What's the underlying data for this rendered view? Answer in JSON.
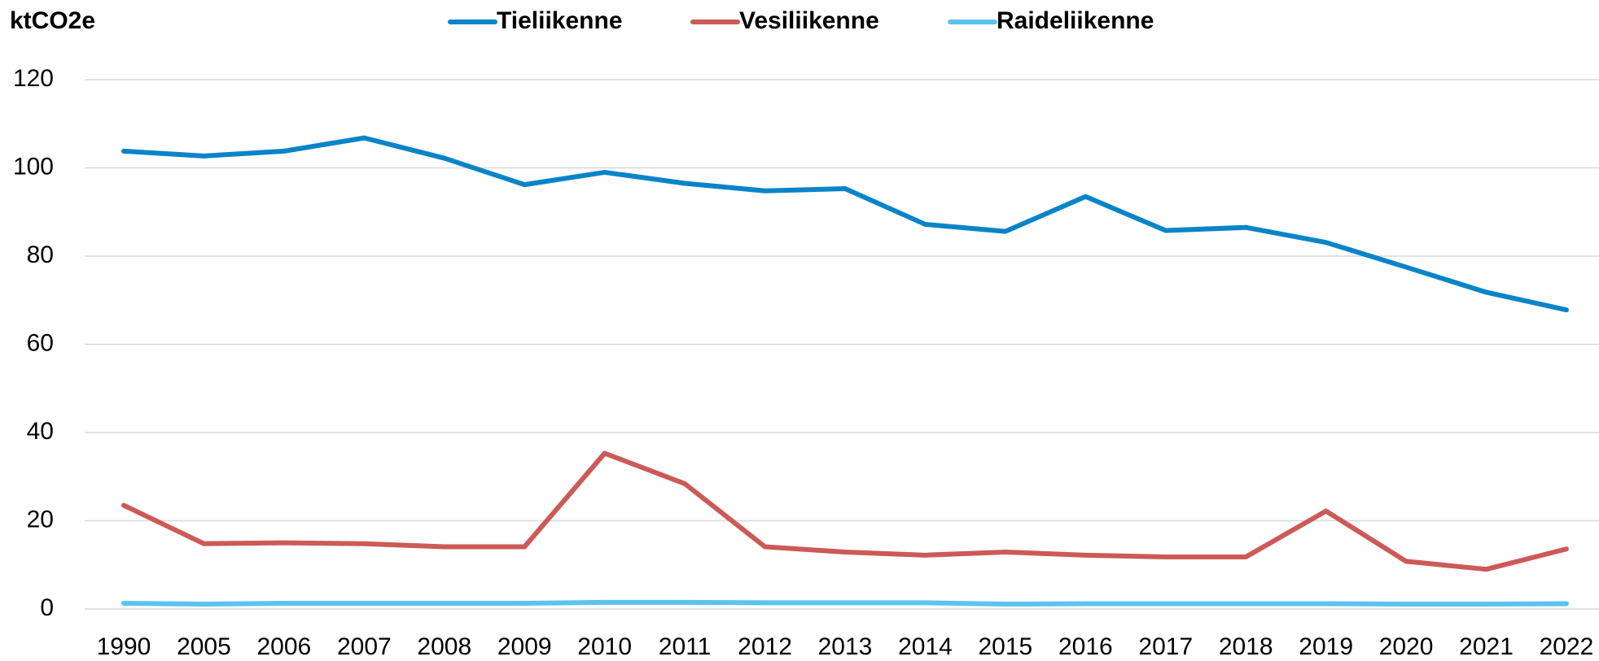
{
  "chart_data": {
    "type": "line",
    "y_label": "ktCO2e",
    "categories": [
      "1990",
      "2005",
      "2006",
      "2007",
      "2008",
      "2009",
      "2010",
      "2011",
      "2012",
      "2013",
      "2014",
      "2015",
      "2016",
      "2017",
      "2018",
      "2019",
      "2020",
      "2021",
      "2022"
    ],
    "series": [
      {
        "name": "Tieliikenne",
        "color": "#0a84c8",
        "values": [
          103.8,
          102.7,
          103.8,
          106.8,
          102.2,
          96.2,
          99,
          96.5,
          94.8,
          95.3,
          87.2,
          85.6,
          93.5,
          85.8,
          86.5,
          83.1,
          77.5,
          71.8,
          67.8
        ]
      },
      {
        "name": "Vesiliikenne",
        "color": "#cc5a57",
        "values": [
          23.5,
          14.8,
          15,
          14.8,
          14.1,
          14.1,
          35.3,
          28.4,
          14.1,
          12.9,
          12.2,
          12.9,
          12.2,
          11.8,
          11.8,
          22.2,
          10.8,
          9,
          13.6
        ]
      },
      {
        "name": "Raideliikenne",
        "color": "#5bc3ee",
        "values": [
          1.3,
          1.1,
          1.3,
          1.3,
          1.3,
          1.3,
          1.5,
          1.5,
          1.4,
          1.4,
          1.4,
          1.1,
          1.2,
          1.2,
          1.2,
          1.2,
          1.1,
          1.1,
          1.2
        ]
      }
    ],
    "ylim": [
      0,
      120
    ],
    "yticks": [
      0,
      20,
      40,
      60,
      80,
      100,
      120
    ],
    "grid": true,
    "legend": "top"
  }
}
